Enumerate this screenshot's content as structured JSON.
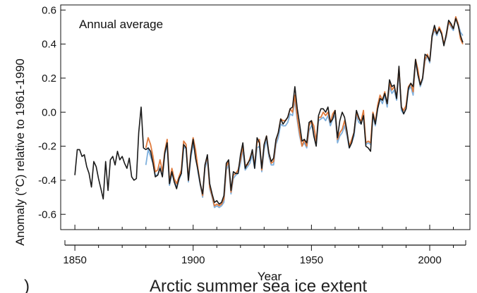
{
  "chart_data": {
    "type": "line",
    "title": "Annual average",
    "xlabel": "Year",
    "ylabel": "Anomaly (°C) relative to 1961-1990",
    "xlim": [
      1844,
      2017
    ],
    "ylim": [
      -0.69,
      0.63
    ],
    "xticks": [
      1850,
      1900,
      1950,
      2000
    ],
    "yticks": [
      -0.6,
      -0.4,
      -0.2,
      0.0,
      0.2,
      0.4,
      0.6
    ],
    "ytick_labels": [
      "-0.6",
      "-0.4",
      "-0.2",
      "0.0",
      "0.2",
      "0.4",
      "0.6"
    ],
    "grid": false,
    "legend": "none",
    "series": [
      {
        "color": "#1a1a1a",
        "x_start": 1850,
        "values": [
          -0.37,
          -0.22,
          -0.22,
          -0.26,
          -0.25,
          -0.32,
          -0.36,
          -0.44,
          -0.29,
          -0.32,
          -0.39,
          -0.45,
          -0.51,
          -0.29,
          -0.46,
          -0.28,
          -0.26,
          -0.31,
          -0.23,
          -0.28,
          -0.26,
          -0.3,
          -0.33,
          -0.27,
          -0.38,
          -0.4,
          -0.39,
          -0.12,
          0.03,
          -0.21,
          -0.22,
          -0.21,
          -0.23,
          -0.3,
          -0.38,
          -0.37,
          -0.33,
          -0.38,
          -0.24,
          -0.18,
          -0.42,
          -0.35,
          -0.41,
          -0.45,
          -0.39,
          -0.36,
          -0.19,
          -0.21,
          -0.4,
          -0.25,
          -0.16,
          -0.27,
          -0.34,
          -0.42,
          -0.48,
          -0.31,
          -0.25,
          -0.42,
          -0.48,
          -0.53,
          -0.52,
          -0.54,
          -0.53,
          -0.49,
          -0.3,
          -0.28,
          -0.46,
          -0.35,
          -0.36,
          -0.36,
          -0.25,
          -0.18,
          -0.33,
          -0.3,
          -0.28,
          -0.22,
          -0.33,
          -0.15,
          -0.18,
          -0.33,
          -0.19,
          -0.14,
          -0.24,
          -0.29,
          -0.27,
          -0.16,
          -0.12,
          -0.04,
          -0.07,
          -0.05,
          -0.03,
          0.02,
          0.03,
          0.15,
          0.02,
          -0.07,
          -0.17,
          -0.16,
          -0.18,
          -0.06,
          -0.05,
          -0.14,
          -0.2,
          -0.02,
          0.02,
          0.02,
          0.0,
          0.03,
          -0.06,
          -0.04,
          0.01,
          -0.15,
          -0.05,
          0.0,
          -0.03,
          -0.11,
          -0.21,
          -0.18,
          -0.12,
          0.01,
          -0.03,
          -0.07,
          -0.02,
          -0.2,
          -0.21,
          -0.23,
          -0.01,
          -0.07,
          0.02,
          0.08,
          0.07,
          0.11,
          0.05,
          0.19,
          0.15,
          0.16,
          0.08,
          0.27,
          0.03,
          -0.01,
          0.02,
          0.14,
          0.17,
          0.15,
          0.31,
          0.22,
          0.16,
          0.2,
          0.34,
          0.33,
          0.3,
          0.45,
          0.51,
          0.46,
          0.49,
          0.46,
          0.39,
          0.46,
          0.54,
          0.52,
          0.49,
          0.55,
          0.51,
          0.45,
          0.41
        ]
      },
      {
        "color": "#e07a3c",
        "x_start": 1880,
        "values": [
          -0.21,
          -0.15,
          -0.19,
          -0.26,
          -0.35,
          -0.34,
          -0.28,
          -0.35,
          -0.23,
          -0.16,
          -0.41,
          -0.33,
          -0.39,
          -0.42,
          -0.38,
          -0.34,
          -0.17,
          -0.19,
          -0.4,
          -0.24,
          -0.15,
          -0.22,
          -0.33,
          -0.42,
          -0.49,
          -0.31,
          -0.26,
          -0.44,
          -0.49,
          -0.55,
          -0.54,
          -0.55,
          -0.54,
          -0.51,
          -0.32,
          -0.29,
          -0.47,
          -0.37,
          -0.36,
          -0.34,
          -0.28,
          -0.2,
          -0.31,
          -0.31,
          -0.27,
          -0.23,
          -0.31,
          -0.18,
          -0.16,
          -0.34,
          -0.19,
          -0.14,
          -0.24,
          -0.3,
          -0.29,
          -0.17,
          -0.12,
          -0.04,
          -0.05,
          -0.05,
          -0.03,
          0.02,
          0.0,
          0.1,
          -0.03,
          -0.12,
          -0.2,
          -0.16,
          -0.2,
          -0.08,
          -0.05,
          -0.08,
          -0.17,
          -0.03,
          -0.03,
          0.0,
          -0.02,
          0.0,
          -0.06,
          -0.01,
          0.01,
          -0.16,
          -0.12,
          -0.1,
          -0.05,
          -0.12,
          -0.2,
          -0.16,
          -0.12,
          0.0,
          -0.04,
          -0.05,
          0.01,
          -0.18,
          -0.17,
          -0.18,
          0.0,
          -0.06,
          0.04,
          0.1,
          0.07,
          0.12,
          0.05,
          0.17,
          0.13,
          0.15,
          0.09,
          0.26,
          0.03,
          0.01,
          0.04,
          0.15,
          0.17,
          0.12,
          0.31,
          0.25,
          0.16,
          0.2,
          0.31,
          0.34,
          0.3,
          0.45,
          0.49,
          0.46,
          0.5,
          0.47,
          0.4,
          0.45,
          0.53,
          0.51,
          0.49,
          0.56,
          0.52,
          0.43,
          0.4
        ]
      },
      {
        "color": "#7fb0dd",
        "x_start": 1880,
        "values": [
          -0.31,
          -0.22,
          -0.26,
          -0.3,
          -0.37,
          -0.37,
          -0.32,
          -0.37,
          -0.25,
          -0.19,
          -0.43,
          -0.36,
          -0.4,
          -0.44,
          -0.4,
          -0.36,
          -0.21,
          -0.21,
          -0.41,
          -0.27,
          -0.19,
          -0.24,
          -0.35,
          -0.43,
          -0.5,
          -0.33,
          -0.28,
          -0.45,
          -0.5,
          -0.56,
          -0.55,
          -0.56,
          -0.55,
          -0.53,
          -0.34,
          -0.31,
          -0.48,
          -0.39,
          -0.37,
          -0.36,
          -0.3,
          -0.22,
          -0.34,
          -0.32,
          -0.3,
          -0.25,
          -0.33,
          -0.21,
          -0.2,
          -0.35,
          -0.22,
          -0.16,
          -0.26,
          -0.31,
          -0.31,
          -0.19,
          -0.15,
          -0.07,
          -0.08,
          -0.08,
          -0.06,
          -0.01,
          -0.02,
          0.07,
          -0.05,
          -0.14,
          -0.2,
          -0.18,
          -0.21,
          -0.11,
          -0.08,
          -0.1,
          -0.19,
          -0.05,
          -0.04,
          -0.03,
          -0.05,
          -0.02,
          -0.08,
          -0.04,
          -0.02,
          -0.18,
          -0.14,
          -0.12,
          -0.08,
          -0.14,
          -0.21,
          -0.18,
          -0.14,
          -0.02,
          -0.06,
          -0.07,
          -0.01,
          -0.19,
          -0.18,
          -0.19,
          -0.02,
          -0.08,
          0.02,
          0.08,
          0.05,
          0.1,
          0.03,
          0.15,
          0.11,
          0.13,
          0.07,
          0.24,
          0.01,
          -0.01,
          0.02,
          0.13,
          0.15,
          0.1,
          0.29,
          0.23,
          0.15,
          0.19,
          0.3,
          0.33,
          0.29,
          0.44,
          0.48,
          0.45,
          0.49,
          0.46,
          0.4,
          0.44,
          0.53,
          0.5,
          0.48,
          0.56,
          0.52,
          0.47,
          0.45
        ]
      }
    ]
  },
  "footer": {
    "partial_letter": ")",
    "next_panel_title": "Arctic summer sea ice extent"
  }
}
